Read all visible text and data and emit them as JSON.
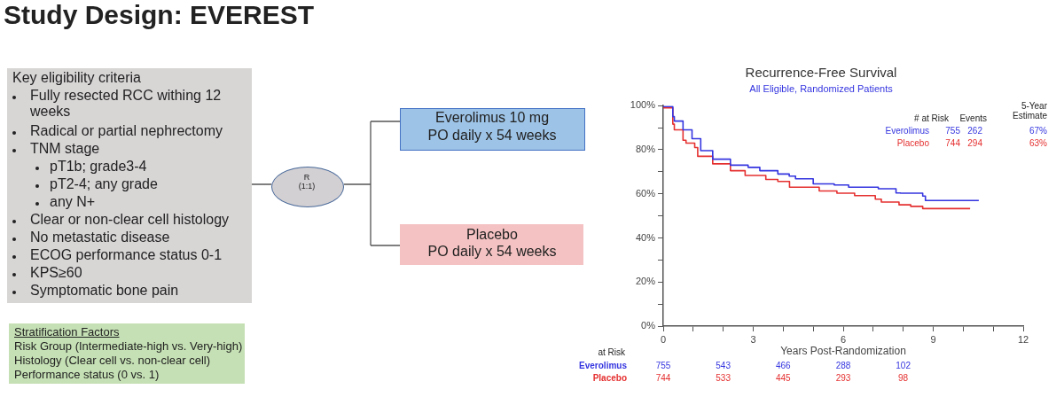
{
  "chart_data": {
    "type": "step",
    "title": "Recurrence-Free Survival",
    "subtitle": "All Eligible, Randomized Patients",
    "xlabel": "Years Post-Randomization",
    "xlim": [
      0,
      12
    ],
    "xticks": [
      {
        "value": 0,
        "label": "0"
      },
      {
        "value": 1,
        "label": null
      },
      {
        "value": 2,
        "label": null
      },
      {
        "value": 3,
        "label": "3"
      },
      {
        "value": 4,
        "label": null
      },
      {
        "value": 5,
        "label": null
      },
      {
        "value": 6,
        "label": "6"
      },
      {
        "value": 7,
        "label": null
      },
      {
        "value": 8,
        "label": null
      },
      {
        "value": 9,
        "label": "9"
      },
      {
        "value": 10,
        "label": null
      },
      {
        "value": 11,
        "label": null
      },
      {
        "value": 12,
        "label": "12"
      }
    ],
    "ylim": [
      0,
      100
    ],
    "yticks": [
      {
        "value": 0,
        "label": "0%"
      },
      {
        "value": 10,
        "label": null
      },
      {
        "value": 20,
        "label": "20%"
      },
      {
        "value": 30,
        "label": null
      },
      {
        "value": 40,
        "label": "40%"
      },
      {
        "value": 50,
        "label": null
      },
      {
        "value": 60,
        "label": "60%"
      },
      {
        "value": 70,
        "label": null
      },
      {
        "value": 80,
        "label": "80%"
      },
      {
        "value": 90,
        "label": null
      },
      {
        "value": 100,
        "label": "100%"
      }
    ],
    "grid": false,
    "legend": "top right",
    "marker": "none",
    "line_style": "solid",
    "series": [
      {
        "name": "Everolimus",
        "color": "#3535e0",
        "x": [
          0,
          0.32,
          0.37,
          0.66,
          0.96,
          1.25,
          1.65,
          2.24,
          2.83,
          3.22,
          3.82,
          4.2,
          4.41,
          5.0,
          5.7,
          6.18,
          7.17,
          7.76,
          7.91,
          8.65,
          8.74,
          8.89,
          10.52
        ],
        "values": [
          100,
          99.6,
          95,
          93,
          89,
          85,
          79.6,
          75.7,
          73,
          72,
          70.5,
          69,
          68,
          66.8,
          64.5,
          64,
          63,
          62.3,
          60.4,
          60.3,
          59,
          57,
          57
        ]
      },
      {
        "name": "Placebo",
        "color": "#e53030",
        "x": [
          0,
          0.32,
          0.37,
          0.66,
          0.76,
          1.05,
          1.15,
          1.65,
          2.24,
          2.73,
          3.42,
          3.82,
          4.21,
          5.2,
          5.79,
          6.38,
          7.07,
          7.27,
          7.86,
          8.25,
          8.65,
          8.7,
          10.23
        ],
        "values": [
          100,
          99,
          91.6,
          89,
          84.3,
          83,
          81,
          77,
          73.6,
          70.5,
          68.3,
          66.5,
          65.6,
          63,
          61.3,
          60.3,
          59.2,
          57.6,
          56.3,
          55,
          54.3,
          53.3,
          53.3
        ]
      }
    ],
    "annotations": [
      "Study Design: EVEREST",
      "Key eligibility criteria",
      "Fully resected RCC withing 12 weeks",
      "Radical or partial nephrectomy",
      "TNM stage",
      "pT1b; grade3-4",
      "pT2-4; any grade",
      "any N+",
      "Clear or non-clear cell histology",
      "No metastatic disease",
      "ECOG performance status 0-1",
      "KPS≥60",
      "Symptomatic bone pain",
      "Stratification Factors",
      "Risk Group (Intermediate-high vs. Very-high)",
      "Histology (Clear cell vs. non-clear cell)",
      "Performance status (0 vs. 1)",
      "R",
      "(1:1)",
      "Everolimus 10 mg",
      "PO daily x 54 weeks",
      "Placebo",
      "PO daily x 54 weeks",
      "# at Risk",
      "Events",
      "5-Year Estimate",
      "755",
      "262",
      "67%",
      "744",
      "294",
      "63%",
      "at Risk",
      "755",
      "543",
      "466",
      "288",
      "102",
      "744",
      "533",
      "445",
      "293",
      "98"
    ]
  }
}
